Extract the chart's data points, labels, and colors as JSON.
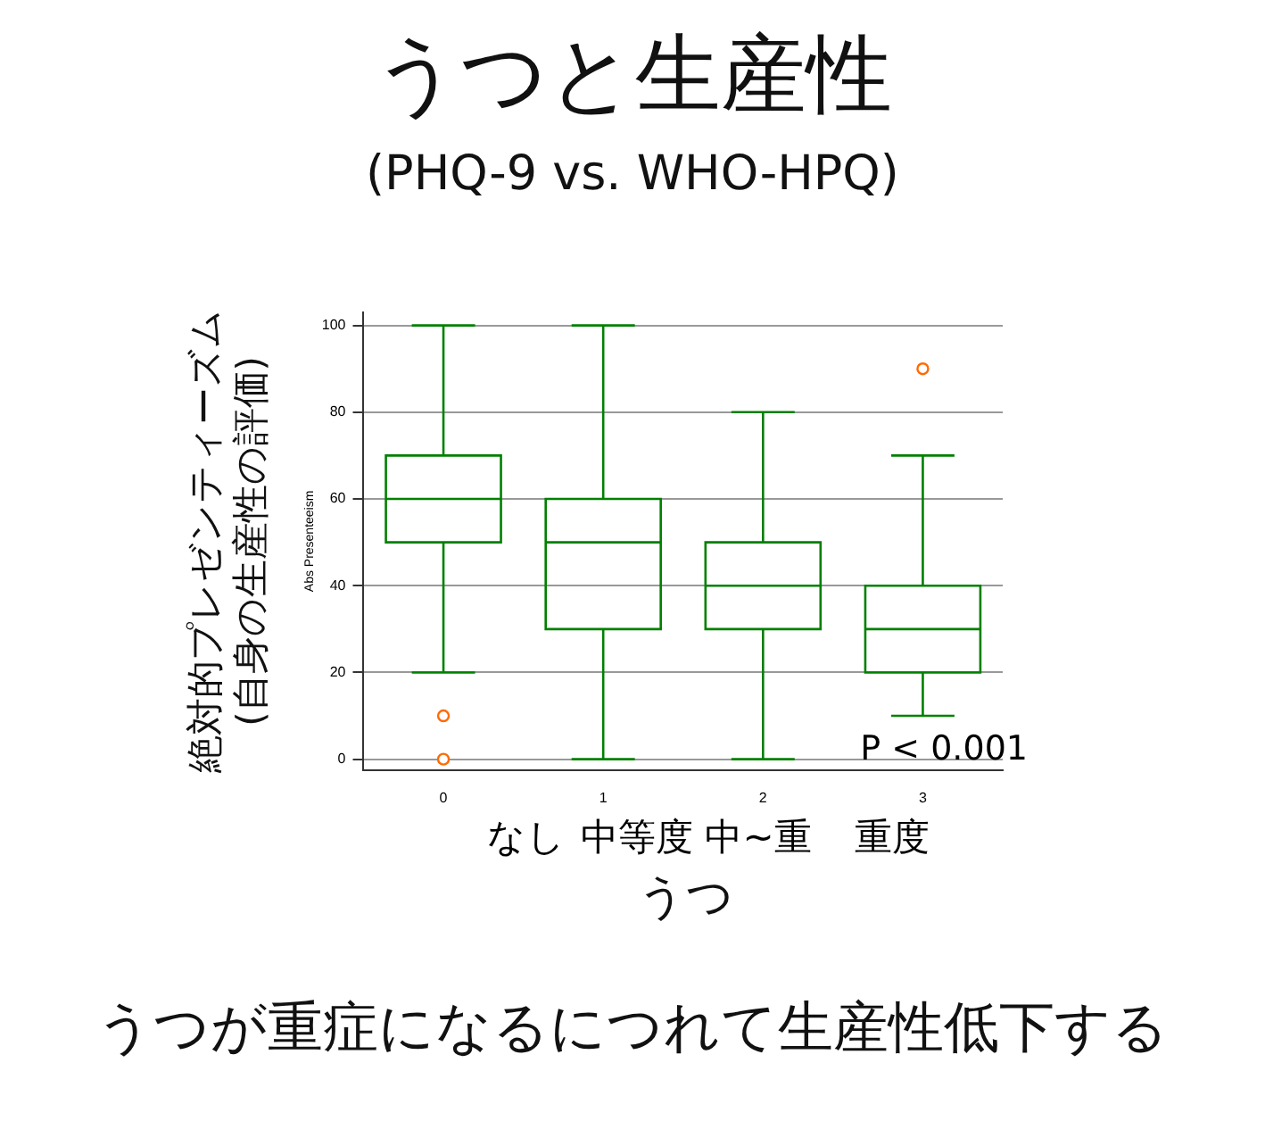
{
  "chart_data": {
    "type": "box",
    "title": "うつと生産性",
    "subtitle": "(PHQ-9 vs. WHO-HPQ)",
    "xlabel": "うつ",
    "ylabel": "絶対的プレゼンティーズム (自身の生産性の評価)",
    "categories": [
      "0",
      "1",
      "2",
      "3"
    ],
    "series": [
      {
        "color": "#008000",
        "boxes": [
          {
            "low": 20,
            "q1": 50,
            "median": 60,
            "q3": 70,
            "high": 100,
            "outliers": [
              10,
              0
            ]
          },
          {
            "low": 0,
            "q1": 30,
            "median": 50,
            "q3": 60,
            "high": 100
          },
          {
            "low": 0,
            "q1": 30,
            "median": 40,
            "q3": 50,
            "high": 80
          },
          {
            "low": 10,
            "q1": 20,
            "median": 30,
            "q3": 40,
            "high": 70,
            "outliers": [
              90
            ]
          }
        ]
      }
    ],
    "ylim": [
      -2.5,
      103
    ],
    "yticks": [
      0,
      20,
      40,
      60,
      80,
      100
    ],
    "grid": "y",
    "annotations": [
      "Abs Presenteeism",
      "P < 0.001",
      "うつが重症になるにつれて生産性低下する",
      "なし",
      "中等度",
      "中~重",
      "重度"
    ]
  }
}
